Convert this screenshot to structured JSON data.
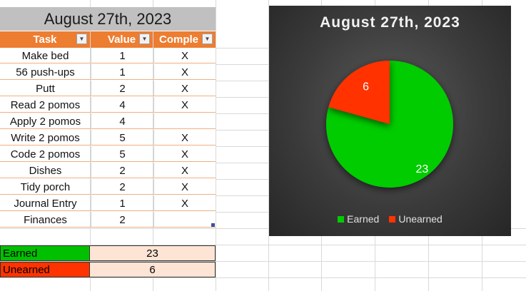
{
  "sheet": {
    "title": "August 27th, 2023",
    "headers": {
      "task": "Task",
      "value": "Value",
      "complete": "Comple"
    },
    "rows": [
      {
        "task": "Make bed",
        "value": "1",
        "complete": "X"
      },
      {
        "task": "56 push-ups",
        "value": "1",
        "complete": "X"
      },
      {
        "task": "Putt",
        "value": "2",
        "complete": "X"
      },
      {
        "task": "Read 2 pomos",
        "value": "4",
        "complete": "X"
      },
      {
        "task": "Apply 2 pomos",
        "value": "4",
        "complete": ""
      },
      {
        "task": "Write 2 pomos",
        "value": "5",
        "complete": "X"
      },
      {
        "task": "Code 2 pomos",
        "value": "5",
        "complete": "X"
      },
      {
        "task": "Dishes",
        "value": "2",
        "complete": "X"
      },
      {
        "task": "Tidy porch",
        "value": "2",
        "complete": "X"
      },
      {
        "task": "Journal Entry",
        "value": "1",
        "complete": "X"
      },
      {
        "task": "Finances",
        "value": "2",
        "complete": ""
      }
    ],
    "summary": [
      {
        "label": "Earned",
        "value": "23",
        "color": "#00c000"
      },
      {
        "label": "Unearned",
        "value": "6",
        "color": "#ff3300"
      }
    ]
  },
  "chart_data": {
    "type": "pie",
    "title": "August 27th, 2023",
    "categories": [
      "Earned",
      "Unearned"
    ],
    "values": [
      23,
      6
    ],
    "data_labels": [
      "23",
      "6"
    ],
    "colors": [
      "#00cc00",
      "#ff3300"
    ],
    "legend_position": "bottom"
  }
}
